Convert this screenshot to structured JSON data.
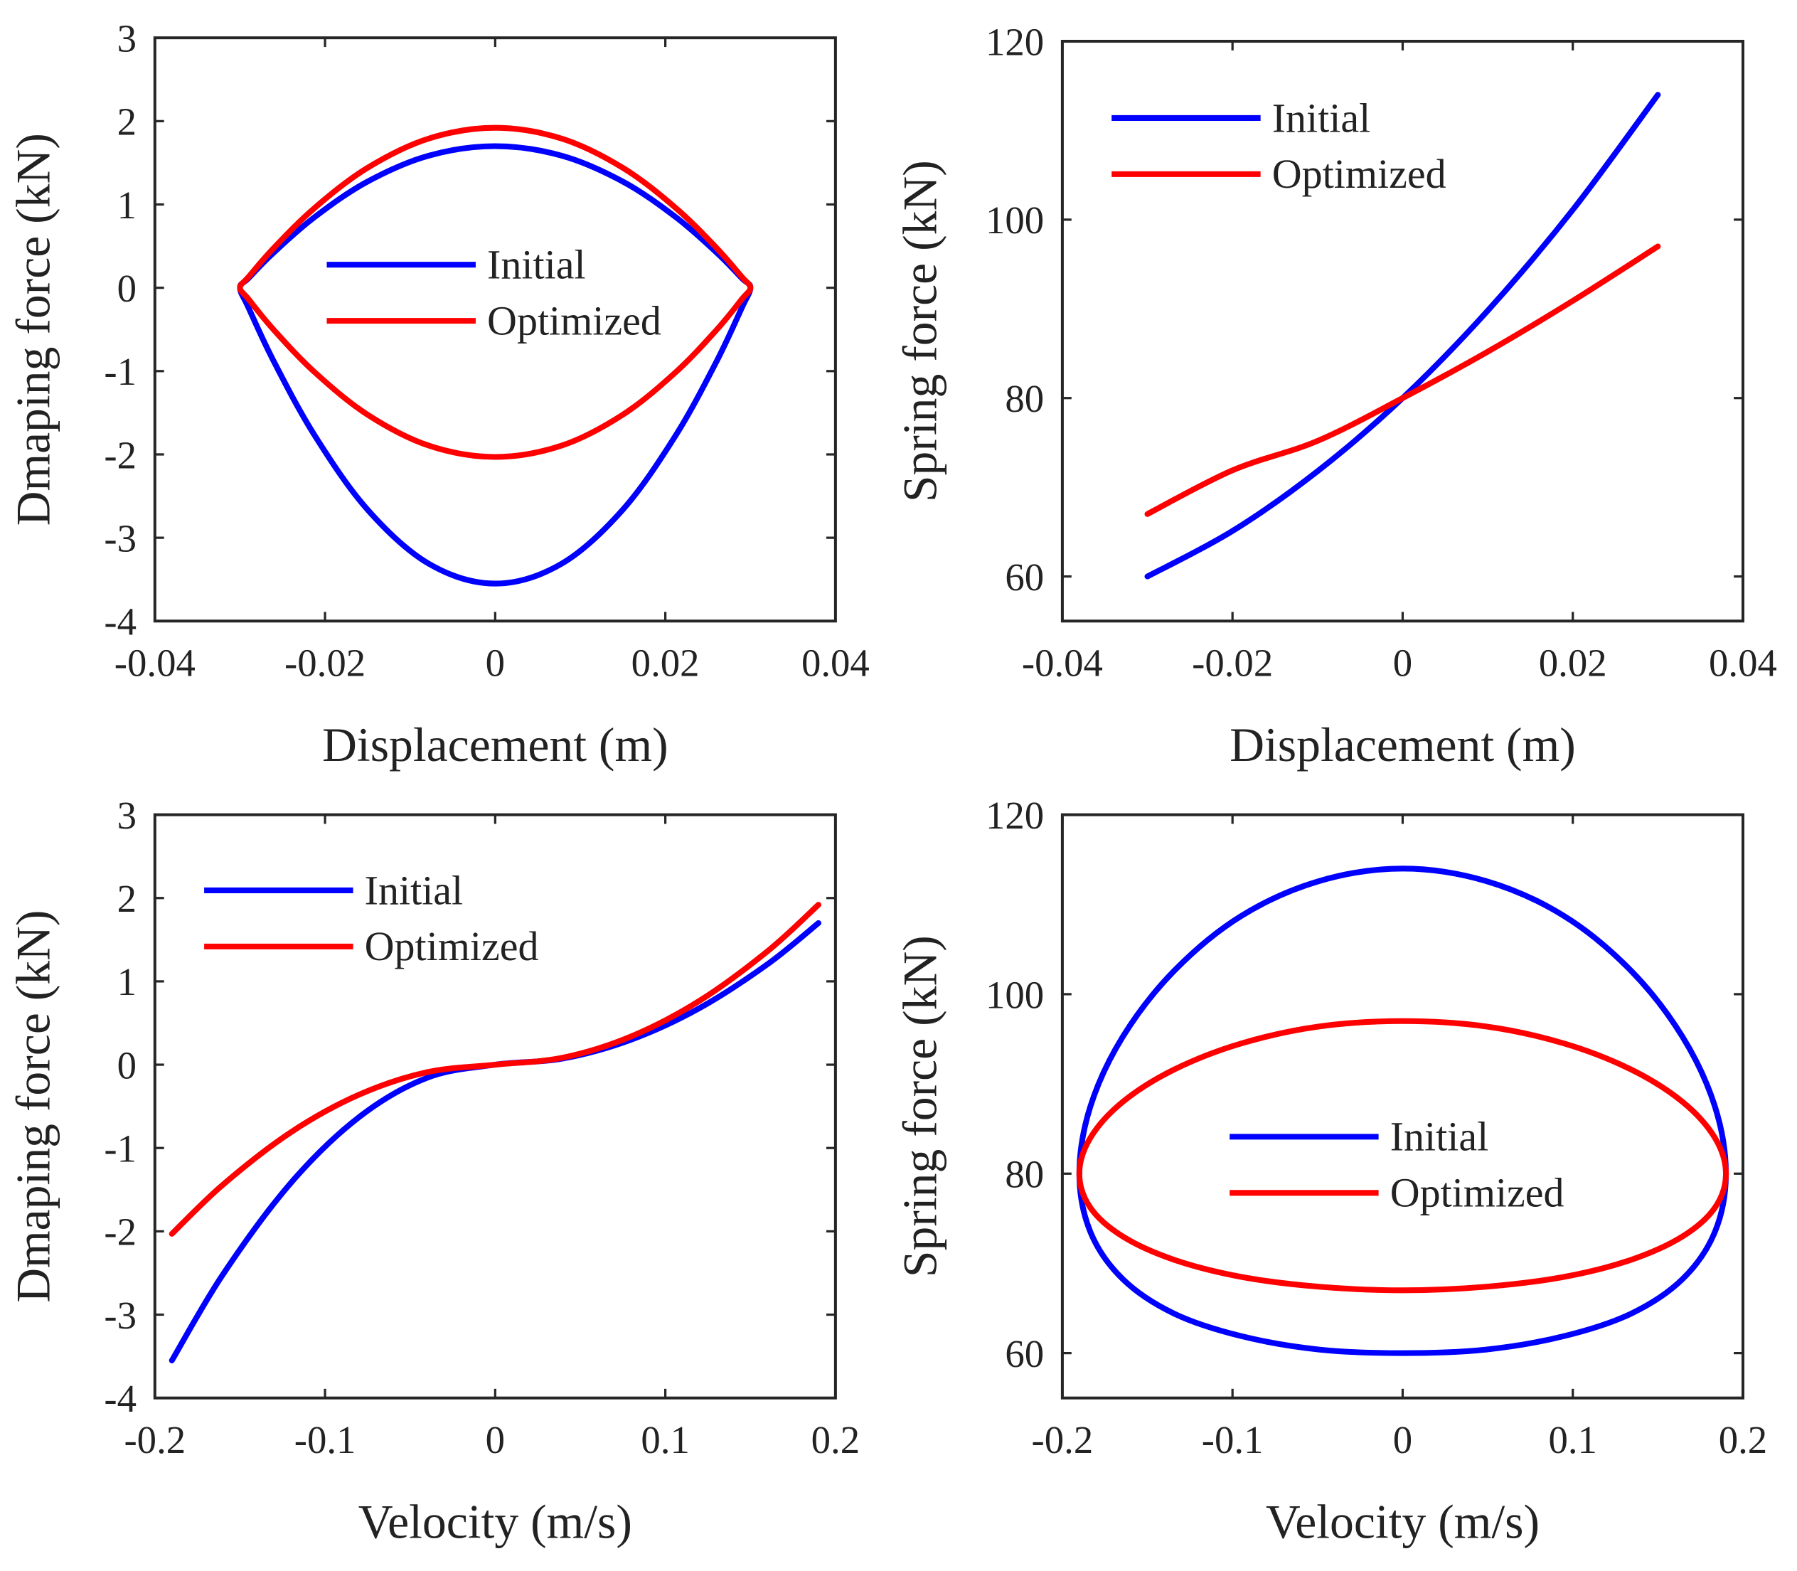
{
  "colors": {
    "initial": "#0000ff",
    "optimized": "#ff0000",
    "axis": "#262626"
  },
  "chart_data": [
    {
      "type": "line",
      "xlabel": "Displacement (m)",
      "ylabel": "Dmaping force (kN)",
      "xlim": [
        -0.04,
        0.04
      ],
      "ylim": [
        -4,
        3
      ],
      "xticks": [
        -0.04,
        -0.02,
        0,
        0.02,
        0.04
      ],
      "xtick_labels": [
        "-0.04",
        "-0.02",
        "0",
        "0.02",
        "0.04"
      ],
      "yticks": [
        -4,
        -3,
        -2,
        -1,
        0,
        1,
        2,
        3
      ],
      "ytick_labels": [
        "-4",
        "-3",
        "-2",
        "-1",
        "0",
        "1",
        "2",
        "3"
      ],
      "legend_position": "center",
      "closed": true,
      "series": [
        {
          "name": "Initial",
          "color": "#0000ff",
          "x": [
            0,
            0.0078,
            0.015,
            0.0212,
            0.026,
            0.029,
            0.03,
            0.029,
            0.026,
            0.0212,
            0.015,
            0.0078,
            0,
            -0.0078,
            -0.015,
            -0.0212,
            -0.026,
            -0.029,
            -0.03,
            -0.029,
            -0.026,
            -0.0212,
            -0.015,
            -0.0078
          ],
          "y": [
            1.7,
            1.586,
            1.275,
            0.85,
            0.425,
            0.114,
            0,
            -0.238,
            -0.888,
            -1.775,
            -2.663,
            -3.312,
            -3.55,
            -3.312,
            -2.663,
            -1.775,
            -0.888,
            -0.238,
            0,
            0.114,
            0.425,
            0.85,
            1.275,
            1.586
          ]
        },
        {
          "name": "Optimized",
          "color": "#ff0000",
          "x": [
            0,
            0.0078,
            0.015,
            0.0212,
            0.026,
            0.029,
            0.03,
            0.029,
            0.026,
            0.0212,
            0.015,
            0.0078,
            0,
            -0.0078,
            -0.015,
            -0.0212,
            -0.026,
            -0.029,
            -0.03,
            -0.029,
            -0.026,
            -0.0212,
            -0.015,
            -0.0078
          ],
          "y": [
            1.92,
            1.791,
            1.44,
            0.96,
            0.48,
            0.129,
            0,
            -0.136,
            -0.508,
            -1.015,
            -1.523,
            -1.894,
            -2.03,
            -1.894,
            -1.523,
            -1.015,
            -0.508,
            -0.136,
            0,
            0.129,
            0.48,
            0.96,
            1.44,
            1.791
          ]
        }
      ]
    },
    {
      "type": "line",
      "xlabel": "Displacement (m)",
      "ylabel": "Spring force (kN)",
      "xlim": [
        -0.04,
        0.04
      ],
      "ylim": [
        55,
        120
      ],
      "xticks": [
        -0.04,
        -0.02,
        0,
        0.02,
        0.04
      ],
      "xtick_labels": [
        "-0.04",
        "-0.02",
        "0",
        "0.02",
        "0.04"
      ],
      "yticks": [
        60,
        80,
        100,
        120
      ],
      "ytick_labels": [
        "60",
        "80",
        "100",
        "120"
      ],
      "legend_position": "top-left",
      "closed": false,
      "series": [
        {
          "name": "Initial",
          "color": "#0000ff",
          "x": [
            -0.03,
            -0.02,
            -0.01,
            0,
            0.01,
            0.02,
            0.03
          ],
          "y": [
            60,
            65.1,
            71.8,
            80,
            89.8,
            101.1,
            114
          ]
        },
        {
          "name": "Optimized",
          "color": "#ff0000",
          "x": [
            -0.03,
            -0.02,
            -0.01,
            0,
            0.01,
            0.02,
            0.03
          ],
          "y": [
            67,
            71.9,
            75.2,
            80,
            85.2,
            90.9,
            97
          ]
        }
      ]
    },
    {
      "type": "line",
      "xlabel": "Velocity (m/s)",
      "ylabel": "Dmaping force (kN)",
      "xlim": [
        -0.2,
        0.2
      ],
      "ylim": [
        -4,
        3
      ],
      "xticks": [
        -0.2,
        -0.1,
        0,
        0.1,
        0.2
      ],
      "xtick_labels": [
        "-0.2",
        "-0.1",
        "0",
        "0.1",
        "0.2"
      ],
      "yticks": [
        -4,
        -3,
        -2,
        -1,
        0,
        1,
        2,
        3
      ],
      "ytick_labels": [
        "-4",
        "-3",
        "-2",
        "-1",
        "0",
        "1",
        "2",
        "3"
      ],
      "legend_position": "top-left",
      "closed": false,
      "series": [
        {
          "name": "Initial",
          "color": "#0000ff",
          "x": [
            -0.19,
            -0.16,
            -0.12,
            -0.08,
            -0.04,
            0,
            0.04,
            0.08,
            0.12,
            0.16,
            0.19
          ],
          "y": [
            -3.55,
            -2.517,
            -1.417,
            -0.629,
            -0.157,
            0,
            0.075,
            0.301,
            0.678,
            1.205,
            1.7
          ]
        },
        {
          "name": "Optimized",
          "color": "#ff0000",
          "x": [
            -0.19,
            -0.16,
            -0.12,
            -0.08,
            -0.04,
            0,
            0.04,
            0.08,
            0.12,
            0.16,
            0.19
          ],
          "y": [
            -2.03,
            -1.44,
            -0.81,
            -0.36,
            -0.09,
            0,
            0.085,
            0.34,
            0.766,
            1.361,
            1.92
          ]
        }
      ]
    },
    {
      "type": "line",
      "xlabel": "Velocity (m/s)",
      "ylabel": "Spring force (kN)",
      "xlim": [
        -0.2,
        0.2
      ],
      "ylim": [
        55,
        120
      ],
      "xticks": [
        -0.2,
        -0.1,
        0,
        0.1,
        0.2
      ],
      "xtick_labels": [
        "-0.2",
        "-0.1",
        "0",
        "0.1",
        "0.2"
      ],
      "yticks": [
        60,
        80,
        100,
        120
      ],
      "ytick_labels": [
        "60",
        "80",
        "100",
        "120"
      ],
      "legend_position": "center",
      "closed": true,
      "series": [
        {
          "name": "Initial",
          "color": "#0000ff",
          "x": [
            0.19,
            0.1835,
            0.1645,
            0.1343,
            0.095,
            0.0492,
            0,
            -0.0492,
            -0.095,
            -0.1343,
            -0.1645,
            -0.1835,
            -0.19,
            -0.1835,
            -0.1645,
            -0.1343,
            -0.095,
            -0.0492,
            0,
            0.0492,
            0.095,
            0.1343,
            0.1645,
            0.1835
          ],
          "y": [
            80,
            87.5,
            95.25,
            102.6,
            108.7,
            112.6,
            114,
            112.6,
            108.7,
            102.6,
            95.25,
            87.5,
            80,
            73.5,
            68.25,
            64.4,
            61.9,
            60.4,
            60,
            60.4,
            61.9,
            64.4,
            68.25,
            73.5
          ]
        },
        {
          "name": "Optimized",
          "color": "#ff0000",
          "x": [
            0.19,
            0.1835,
            0.1645,
            0.1343,
            0.095,
            0.0492,
            0,
            -0.0492,
            -0.095,
            -0.1343,
            -0.1645,
            -0.1835,
            -0.19,
            -0.1835,
            -0.1645,
            -0.1343,
            -0.095,
            -0.0492,
            0,
            0.0492,
            0.095,
            0.1343,
            0.1645,
            0.1835
          ],
          "y": [
            80,
            84.0,
            88.0,
            91.6,
            94.5,
            96.4,
            97,
            96.4,
            94.5,
            91.6,
            88.0,
            84.0,
            80,
            76.2,
            73.0,
            70.4,
            68.5,
            67.4,
            67,
            67.4,
            68.5,
            70.4,
            73.0,
            76.2
          ]
        }
      ]
    }
  ]
}
